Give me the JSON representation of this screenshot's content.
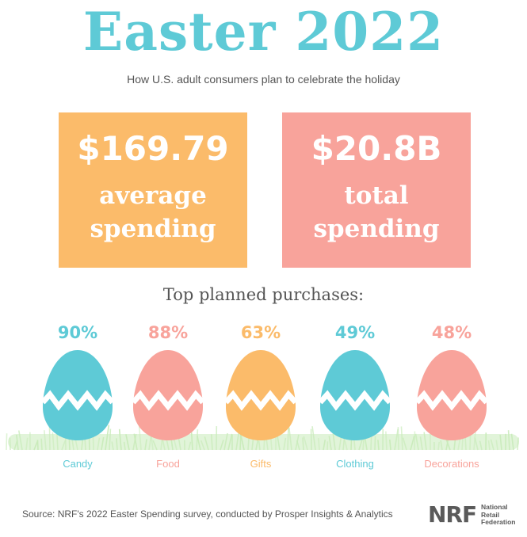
{
  "header": {
    "title": "Easter 2022",
    "subtitle": "How U.S. adult consumers plan to celebrate the holiday"
  },
  "stats": [
    {
      "amount": "$169.79",
      "label_line1": "average",
      "label_line2": "spending"
    },
    {
      "amount": "$20.8B",
      "label_line1": "total",
      "label_line2": "spending"
    }
  ],
  "purchases": {
    "heading": "Top planned purchases:",
    "items": [
      {
        "percent": "90%",
        "label": "Candy",
        "value": 90
      },
      {
        "percent": "88%",
        "label": "Food",
        "value": 88
      },
      {
        "percent": "63%",
        "label": "Gifts",
        "value": 63
      },
      {
        "percent": "49%",
        "label": "Clothing",
        "value": 49
      },
      {
        "percent": "48%",
        "label": "Decorations",
        "value": 48
      }
    ]
  },
  "footer": {
    "source": "Source: NRF's 2022 Easter Spending survey, conducted by Prosper Insights & Analytics",
    "logo_text": "NRF",
    "logo_line1": "National",
    "logo_line2": "Retail",
    "logo_line3": "Federation"
  },
  "colors": {
    "teal": "#5ecad6",
    "pink": "#f8a39b",
    "orange": "#fbbb6a",
    "grass": "#c9ebba"
  }
}
